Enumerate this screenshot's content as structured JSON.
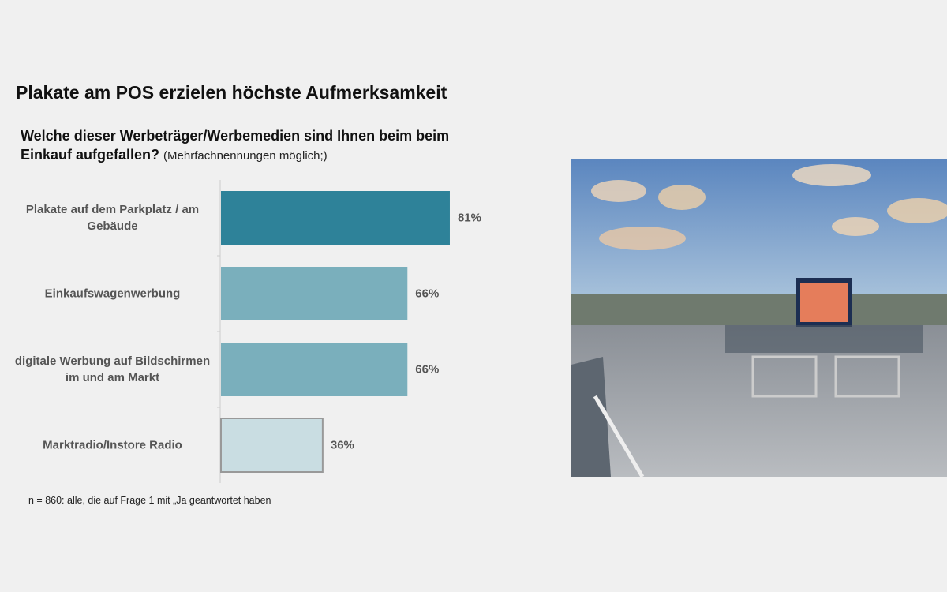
{
  "title": "Plakate am POS erzielen höchste Aufmerksamkeit",
  "chart_data": {
    "type": "bar",
    "orientation": "horizontal",
    "title": "Welche dieser Werbeträger/Werbemedien sind Ihnen beim beim Einkauf aufgefallen?",
    "subtitle": "(Mehrfachnennungen möglich;)",
    "categories": [
      "Plakate auf dem Parkplatz / am Gebäude",
      "Einkaufswagenwerbung",
      "digitale Werbung auf Bildschirmen im und am Markt",
      "Marktradio/Instore Radio"
    ],
    "values": [
      81,
      66,
      66,
      36
    ],
    "value_labels": [
      "81%",
      "66%",
      "66%",
      "36%"
    ],
    "colors": [
      "#2e8299",
      "#7aafbc",
      "#7aafbc",
      "#c9dde2"
    ],
    "note": "n = 860: alle, die auf Frage 1 mit „Ja geantwortet haben"
  }
}
